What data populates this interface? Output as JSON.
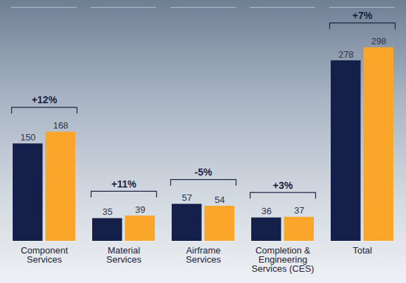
{
  "chart_data": {
    "type": "bar",
    "categories": [
      "Component Services",
      "Material Services",
      "Airframe Services",
      "Completion & Engineering Services (CES)",
      "Total"
    ],
    "series": [
      {
        "color": "#14204a",
        "values": [
          150,
          35,
          57,
          36,
          278
        ]
      },
      {
        "color": "#f9a62b",
        "values": [
          168,
          39,
          54,
          37,
          298
        ]
      }
    ],
    "annotations": [
      "+12%",
      "+11%",
      "-5%",
      "+3%",
      "+7%"
    ],
    "ylim": [
      0,
      360
    ],
    "yticks": [],
    "grid": false,
    "data_labels": true,
    "tick_labels": "x"
  }
}
